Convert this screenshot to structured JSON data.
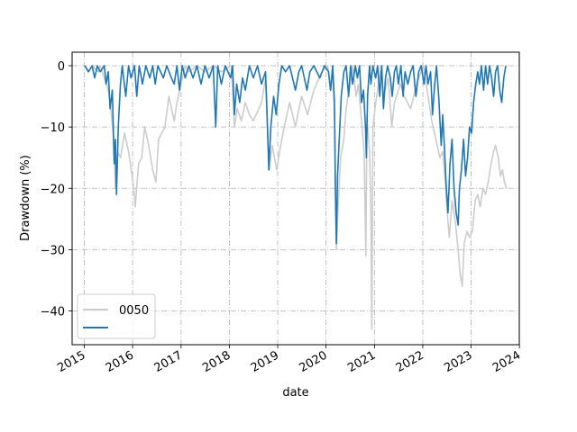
{
  "chart_data": {
    "type": "line",
    "xlabel": "date",
    "ylabel": "Drawdown (%)",
    "xlim": [
      "2014-10-01",
      "2023-12-31"
    ],
    "ylim": [
      -45.5,
      2.2
    ],
    "x_ticks": [
      "2015",
      "2016",
      "2017",
      "2018",
      "2019",
      "2020",
      "2021",
      "2022",
      "2023",
      "2024"
    ],
    "y_ticks": [
      0,
      -10,
      -20,
      -30,
      -40
    ],
    "grid": true,
    "grid_style": "dash-dot",
    "legend_position": "lower left",
    "series": [
      {
        "name": "0050",
        "color": "#cccccc",
        "points": [
          [
            "2015-01-05",
            0
          ],
          [
            "2015-02-01",
            -1
          ],
          [
            "2015-03-01",
            0
          ],
          [
            "2015-04-15",
            -1
          ],
          [
            "2015-05-01",
            0
          ],
          [
            "2015-06-01",
            -2
          ],
          [
            "2015-07-01",
            -4
          ],
          [
            "2015-07-20",
            -7
          ],
          [
            "2015-08-10",
            -12
          ],
          [
            "2015-08-24",
            -20
          ],
          [
            "2015-09-10",
            -14
          ],
          [
            "2015-10-01",
            -15
          ],
          [
            "2015-11-01",
            -11
          ],
          [
            "2015-12-01",
            -14
          ],
          [
            "2016-01-10",
            -20
          ],
          [
            "2016-01-21",
            -23
          ],
          [
            "2016-02-15",
            -16
          ],
          [
            "2016-03-10",
            -15
          ],
          [
            "2016-04-01",
            -10
          ],
          [
            "2016-05-01",
            -13
          ],
          [
            "2016-06-01",
            -17
          ],
          [
            "2016-06-25",
            -19
          ],
          [
            "2016-07-15",
            -12
          ],
          [
            "2016-09-01",
            -10
          ],
          [
            "2016-10-01",
            -5
          ],
          [
            "2016-11-10",
            -9
          ],
          [
            "2016-12-01",
            -6
          ],
          [
            "2017-01-01",
            -3
          ],
          [
            "2017-02-01",
            0
          ],
          [
            "2017-03-01",
            -1
          ],
          [
            "2017-05-01",
            0
          ],
          [
            "2017-07-01",
            -1
          ],
          [
            "2017-09-01",
            0
          ],
          [
            "2017-11-01",
            -1
          ],
          [
            "2018-01-15",
            0
          ],
          [
            "2018-02-08",
            -10
          ],
          [
            "2018-03-01",
            -7
          ],
          [
            "2018-04-01",
            -9
          ],
          [
            "2018-05-01",
            -6
          ],
          [
            "2018-06-01",
            -8
          ],
          [
            "2018-07-01",
            -9
          ],
          [
            "2018-09-01",
            -6
          ],
          [
            "2018-10-01",
            -2
          ],
          [
            "2018-10-15",
            -10
          ],
          [
            "2018-10-29",
            -17
          ],
          [
            "2018-11-20",
            -13
          ],
          [
            "2018-12-25",
            -17
          ],
          [
            "2019-01-15",
            -14
          ],
          [
            "2019-02-01",
            -12
          ],
          [
            "2019-03-01",
            -9
          ],
          [
            "2019-04-01",
            -6
          ],
          [
            "2019-05-15",
            -10
          ],
          [
            "2019-06-01",
            -8
          ],
          [
            "2019-07-01",
            -5
          ],
          [
            "2019-08-15",
            -8
          ],
          [
            "2019-10-01",
            -4
          ],
          [
            "2019-12-01",
            -1
          ],
          [
            "2020-01-15",
            0
          ],
          [
            "2020-02-01",
            -4
          ],
          [
            "2020-02-20",
            -1
          ],
          [
            "2020-03-05",
            -8
          ],
          [
            "2020-03-19",
            -30
          ],
          [
            "2020-04-01",
            -23
          ],
          [
            "2020-04-20",
            -15
          ],
          [
            "2020-05-15",
            -12
          ],
          [
            "2020-06-01",
            -7
          ],
          [
            "2020-07-01",
            -3
          ],
          [
            "2020-07-20",
            0
          ],
          [
            "2020-08-15",
            -5
          ],
          [
            "2020-09-01",
            -3
          ],
          [
            "2020-09-25",
            -9
          ],
          [
            "2020-10-15",
            -14
          ],
          [
            "2020-10-28",
            -31
          ],
          [
            "2020-11-05",
            -8
          ],
          [
            "2020-11-25",
            -14
          ],
          [
            "2020-12-05",
            -24
          ],
          [
            "2020-12-12",
            -43
          ],
          [
            "2020-12-20",
            -10
          ],
          [
            "2021-01-10",
            -6
          ],
          [
            "2021-02-01",
            -3
          ],
          [
            "2021-02-20",
            0
          ],
          [
            "2021-03-10",
            -5
          ],
          [
            "2021-04-15",
            -2
          ],
          [
            "2021-05-12",
            -10
          ],
          [
            "2021-06-01",
            -6
          ],
          [
            "2021-07-15",
            -3
          ],
          [
            "2021-08-15",
            -5
          ],
          [
            "2021-10-01",
            -7
          ],
          [
            "2021-11-15",
            -3
          ],
          [
            "2022-01-05",
            0
          ],
          [
            "2022-02-10",
            -5
          ],
          [
            "2022-03-10",
            -9
          ],
          [
            "2022-04-10",
            -12
          ],
          [
            "2022-05-10",
            -15
          ],
          [
            "2022-06-01",
            -14
          ],
          [
            "2022-06-20",
            -19
          ],
          [
            "2022-07-05",
            -24
          ],
          [
            "2022-07-20",
            -28
          ],
          [
            "2022-08-10",
            -22
          ],
          [
            "2022-09-01",
            -25
          ],
          [
            "2022-09-25",
            -30
          ],
          [
            "2022-10-10",
            -34
          ],
          [
            "2022-10-25",
            -36
          ],
          [
            "2022-11-10",
            -29
          ],
          [
            "2022-12-01",
            -27
          ],
          [
            "2022-12-20",
            -28
          ],
          [
            "2023-01-10",
            -27
          ],
          [
            "2023-02-01",
            -22
          ],
          [
            "2023-02-20",
            -21
          ],
          [
            "2023-03-10",
            -23
          ],
          [
            "2023-04-01",
            -20
          ],
          [
            "2023-04-20",
            -21
          ],
          [
            "2023-05-10",
            -19
          ],
          [
            "2023-06-01",
            -16
          ],
          [
            "2023-06-20",
            -14
          ],
          [
            "2023-07-05",
            -13
          ],
          [
            "2023-07-25",
            -15
          ],
          [
            "2023-08-10",
            -18
          ],
          [
            "2023-08-25",
            -17
          ],
          [
            "2023-09-10",
            -19
          ],
          [
            "2023-09-25",
            -20
          ]
        ]
      },
      {
        "name": "",
        "color": "#1f77b4",
        "points": [
          [
            "2015-01-05",
            0
          ],
          [
            "2015-02-01",
            -1
          ],
          [
            "2015-03-01",
            0
          ],
          [
            "2015-03-20",
            -2
          ],
          [
            "2015-04-10",
            0
          ],
          [
            "2015-05-01",
            -1
          ],
          [
            "2015-06-01",
            0
          ],
          [
            "2015-06-15",
            -3
          ],
          [
            "2015-07-01",
            -1
          ],
          [
            "2015-07-15",
            -7
          ],
          [
            "2015-08-01",
            -4
          ],
          [
            "2015-08-15",
            -16
          ],
          [
            "2015-08-24",
            -12
          ],
          [
            "2015-09-01",
            -21
          ],
          [
            "2015-09-15",
            -10
          ],
          [
            "2015-10-01",
            -3
          ],
          [
            "2015-10-15",
            0
          ],
          [
            "2015-11-10",
            -5
          ],
          [
            "2015-12-01",
            0
          ],
          [
            "2015-12-20",
            -2
          ],
          [
            "2016-01-15",
            0
          ],
          [
            "2016-02-01",
            -5
          ],
          [
            "2016-02-20",
            0
          ],
          [
            "2016-03-15",
            -3
          ],
          [
            "2016-04-10",
            0
          ],
          [
            "2016-05-10",
            -2
          ],
          [
            "2016-06-01",
            0
          ],
          [
            "2016-06-20",
            -3
          ],
          [
            "2016-07-10",
            0
          ],
          [
            "2016-08-20",
            -2
          ],
          [
            "2016-09-15",
            0
          ],
          [
            "2016-10-20",
            -2
          ],
          [
            "2016-11-10",
            -3
          ],
          [
            "2016-12-01",
            0
          ],
          [
            "2016-12-20",
            -4
          ],
          [
            "2017-01-10",
            0
          ],
          [
            "2017-02-01",
            -2
          ],
          [
            "2017-03-01",
            0
          ],
          [
            "2017-04-01",
            -2
          ],
          [
            "2017-05-01",
            0
          ],
          [
            "2017-06-01",
            -3
          ],
          [
            "2017-07-01",
            0
          ],
          [
            "2017-08-01",
            -2
          ],
          [
            "2017-09-01",
            0
          ],
          [
            "2017-09-20",
            -10
          ],
          [
            "2017-10-05",
            0
          ],
          [
            "2017-11-01",
            -3
          ],
          [
            "2017-12-01",
            0
          ],
          [
            "2018-01-10",
            -2
          ],
          [
            "2018-01-25",
            0
          ],
          [
            "2018-02-08",
            -8
          ],
          [
            "2018-02-25",
            -3
          ],
          [
            "2018-03-20",
            -6
          ],
          [
            "2018-04-10",
            -2
          ],
          [
            "2018-05-01",
            -4
          ],
          [
            "2018-06-01",
            0
          ],
          [
            "2018-07-01",
            -2
          ],
          [
            "2018-08-01",
            0
          ],
          [
            "2018-09-01",
            -3
          ],
          [
            "2018-10-01",
            -1
          ],
          [
            "2018-10-10",
            -6
          ],
          [
            "2018-10-26",
            -17
          ],
          [
            "2018-11-10",
            -10
          ],
          [
            "2018-12-01",
            -5
          ],
          [
            "2018-12-20",
            -8
          ],
          [
            "2019-01-10",
            -3
          ],
          [
            "2019-02-01",
            0
          ],
          [
            "2019-03-01",
            -1
          ],
          [
            "2019-04-01",
            0
          ],
          [
            "2019-05-15",
            -4
          ],
          [
            "2019-06-10",
            -1
          ],
          [
            "2019-07-01",
            0
          ],
          [
            "2019-08-10",
            -4
          ],
          [
            "2019-09-01",
            -1
          ],
          [
            "2019-10-01",
            0
          ],
          [
            "2019-11-15",
            -2
          ],
          [
            "2019-12-20",
            0
          ],
          [
            "2020-01-20",
            -1
          ],
          [
            "2020-02-05",
            -4
          ],
          [
            "2020-02-20",
            0
          ],
          [
            "2020-03-05",
            -6
          ],
          [
            "2020-03-12",
            -20
          ],
          [
            "2020-03-19",
            -29
          ],
          [
            "2020-03-28",
            -18
          ],
          [
            "2020-04-10",
            -12
          ],
          [
            "2020-04-25",
            -5
          ],
          [
            "2020-05-15",
            -1
          ],
          [
            "2020-06-01",
            0
          ],
          [
            "2020-06-20",
            -5
          ],
          [
            "2020-07-05",
            0
          ],
          [
            "2020-07-20",
            -3
          ],
          [
            "2020-08-10",
            0
          ],
          [
            "2020-08-25",
            -2
          ],
          [
            "2020-09-10",
            0
          ],
          [
            "2020-09-25",
            -6
          ],
          [
            "2020-10-10",
            -4
          ],
          [
            "2020-10-25",
            -10
          ],
          [
            "2020-11-01",
            -15
          ],
          [
            "2020-11-10",
            -5
          ],
          [
            "2020-11-25",
            0
          ],
          [
            "2020-12-05",
            -3
          ],
          [
            "2020-12-20",
            0
          ],
          [
            "2021-01-10",
            -2
          ],
          [
            "2021-01-25",
            0
          ],
          [
            "2021-02-10",
            -5
          ],
          [
            "2021-02-25",
            0
          ],
          [
            "2021-03-10",
            -7
          ],
          [
            "2021-03-25",
            -2
          ],
          [
            "2021-04-10",
            0
          ],
          [
            "2021-05-01",
            -2
          ],
          [
            "2021-05-15",
            -5
          ],
          [
            "2021-06-01",
            -1
          ],
          [
            "2021-06-15",
            0
          ],
          [
            "2021-07-01",
            -3
          ],
          [
            "2021-07-20",
            0
          ],
          [
            "2021-08-05",
            -5
          ],
          [
            "2021-08-20",
            -1
          ],
          [
            "2021-09-10",
            -3
          ],
          [
            "2021-10-01",
            -1
          ],
          [
            "2021-10-20",
            0
          ],
          [
            "2021-11-10",
            -5
          ],
          [
            "2021-12-01",
            -1
          ],
          [
            "2021-12-20",
            0
          ],
          [
            "2022-01-10",
            -3
          ],
          [
            "2022-01-25",
            0
          ],
          [
            "2022-02-10",
            -3
          ],
          [
            "2022-03-01",
            -1
          ],
          [
            "2022-03-15",
            -8
          ],
          [
            "2022-04-01",
            -3
          ],
          [
            "2022-04-15",
            0
          ],
          [
            "2022-05-01",
            -5
          ],
          [
            "2022-05-20",
            -13
          ],
          [
            "2022-06-01",
            -8
          ],
          [
            "2022-06-15",
            -14
          ],
          [
            "2022-06-25",
            -19
          ],
          [
            "2022-07-10",
            -24
          ],
          [
            "2022-07-25",
            -16
          ],
          [
            "2022-08-10",
            -12
          ],
          [
            "2022-08-25",
            -20
          ],
          [
            "2022-09-10",
            -24
          ],
          [
            "2022-09-25",
            -26
          ],
          [
            "2022-10-05",
            -20
          ],
          [
            "2022-10-20",
            -17
          ],
          [
            "2022-11-05",
            -12
          ],
          [
            "2022-11-20",
            -18
          ],
          [
            "2022-12-05",
            -15
          ],
          [
            "2022-12-20",
            -10
          ],
          [
            "2023-01-05",
            -11
          ],
          [
            "2023-01-20",
            -6
          ],
          [
            "2023-02-05",
            -3
          ],
          [
            "2023-02-20",
            -1
          ],
          [
            "2023-03-05",
            -3
          ],
          [
            "2023-03-20",
            0
          ],
          [
            "2023-04-05",
            -4
          ],
          [
            "2023-04-20",
            0
          ],
          [
            "2023-05-05",
            -3
          ],
          [
            "2023-05-20",
            0
          ],
          [
            "2023-06-05",
            -2
          ],
          [
            "2023-06-20",
            -5
          ],
          [
            "2023-07-05",
            -1
          ],
          [
            "2023-07-20",
            0
          ],
          [
            "2023-08-05",
            -4
          ],
          [
            "2023-08-20",
            -6
          ],
          [
            "2023-09-05",
            -2
          ],
          [
            "2023-09-20",
            0
          ]
        ]
      }
    ]
  }
}
